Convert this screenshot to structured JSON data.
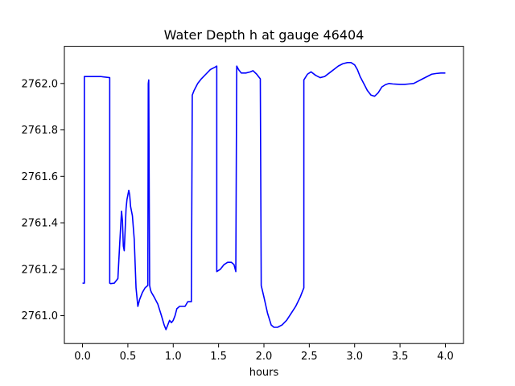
{
  "chart_data": {
    "type": "line",
    "title": "Water Depth h at gauge 46404",
    "xlabel": "hours",
    "ylabel": "",
    "xlim": [
      -0.2,
      4.2
    ],
    "ylim": [
      2760.88,
      2762.16
    ],
    "xticks": [
      0.0,
      0.5,
      1.0,
      1.5,
      2.0,
      2.5,
      3.0,
      3.5,
      4.0
    ],
    "xtick_labels": [
      "0.0",
      "0.5",
      "1.0",
      "1.5",
      "2.0",
      "2.5",
      "3.0",
      "3.5",
      "4.0"
    ],
    "yticks": [
      2761.0,
      2761.2,
      2761.4,
      2761.6,
      2761.8,
      2762.0
    ],
    "ytick_labels": [
      "2761.0",
      "2761.2",
      "2761.4",
      "2761.6",
      "2761.8",
      "2762.0"
    ],
    "grid": false,
    "series": [
      {
        "color": "#0000ff",
        "x": [
          0.0,
          0.01,
          0.02,
          0.02,
          0.1,
          0.2,
          0.3,
          0.3,
          0.31,
          0.35,
          0.39,
          0.41,
          0.43,
          0.44,
          0.45,
          0.46,
          0.47,
          0.48,
          0.49,
          0.51,
          0.52,
          0.53,
          0.55,
          0.57,
          0.59,
          0.61,
          0.63,
          0.66,
          0.69,
          0.72,
          0.725,
          0.73,
          0.74,
          0.75,
          0.76,
          0.79,
          0.83,
          0.87,
          0.9,
          0.92,
          0.94,
          0.96,
          0.98,
          1.0,
          1.02,
          1.04,
          1.07,
          1.1,
          1.13,
          1.16,
          1.2,
          1.21,
          1.23,
          1.27,
          1.31,
          1.36,
          1.41,
          1.46,
          1.48,
          1.48,
          1.52,
          1.56,
          1.6,
          1.64,
          1.67,
          1.69,
          1.7,
          1.72,
          1.75,
          1.8,
          1.85,
          1.88,
          1.92,
          1.95,
          1.96,
          1.97,
          2.0,
          2.04,
          2.08,
          2.11,
          2.15,
          2.2,
          2.25,
          2.3,
          2.35,
          2.4,
          2.44,
          2.44,
          2.48,
          2.52,
          2.57,
          2.62,
          2.67,
          2.72,
          2.77,
          2.82,
          2.87,
          2.92,
          2.96,
          3.0,
          3.03,
          3.06,
          3.1,
          3.14,
          3.18,
          3.22,
          3.26,
          3.3,
          3.34,
          3.38,
          3.42,
          3.46,
          3.5,
          3.55,
          3.6,
          3.65,
          3.7,
          3.75,
          3.8,
          3.85,
          3.9,
          3.95,
          4.0
        ],
        "y": [
          2761.14,
          2761.14,
          2761.14,
          2762.03,
          2762.03,
          2762.03,
          2762.025,
          2761.14,
          2761.138,
          2761.14,
          2761.16,
          2761.31,
          2761.45,
          2761.41,
          2761.3,
          2761.28,
          2761.37,
          2761.46,
          2761.5,
          2761.54,
          2761.52,
          2761.47,
          2761.43,
          2761.33,
          2761.12,
          2761.04,
          2761.07,
          2761.1,
          2761.12,
          2761.13,
          2762.0,
          2762.015,
          2761.13,
          2761.11,
          2761.1,
          2761.08,
          2761.05,
          2761.0,
          2760.96,
          2760.94,
          2760.96,
          2760.98,
          2760.97,
          2760.98,
          2761.0,
          2761.03,
          2761.04,
          2761.04,
          2761.04,
          2761.06,
          2761.06,
          2761.95,
          2761.97,
          2762.0,
          2762.02,
          2762.04,
          2762.06,
          2762.07,
          2762.075,
          2761.19,
          2761.2,
          2761.22,
          2761.23,
          2761.23,
          2761.22,
          2761.19,
          2762.075,
          2762.06,
          2762.045,
          2762.045,
          2762.05,
          2762.055,
          2762.04,
          2762.025,
          2762.02,
          2761.13,
          2761.08,
          2761.01,
          2760.96,
          2760.95,
          2760.95,
          2760.96,
          2760.98,
          2761.01,
          2761.04,
          2761.08,
          2761.12,
          2762.015,
          2762.04,
          2762.05,
          2762.035,
          2762.025,
          2762.03,
          2762.045,
          2762.06,
          2762.075,
          2762.085,
          2762.09,
          2762.09,
          2762.08,
          2762.06,
          2762.03,
          2762.0,
          2761.97,
          2761.95,
          2761.945,
          2761.96,
          2761.985,
          2761.995,
          2762.0,
          2761.998,
          2761.997,
          2761.996,
          2761.996,
          2761.998,
          2762.0,
          2762.01,
          2762.02,
          2762.03,
          2762.04,
          2762.043,
          2762.045,
          2762.045
        ]
      }
    ]
  }
}
